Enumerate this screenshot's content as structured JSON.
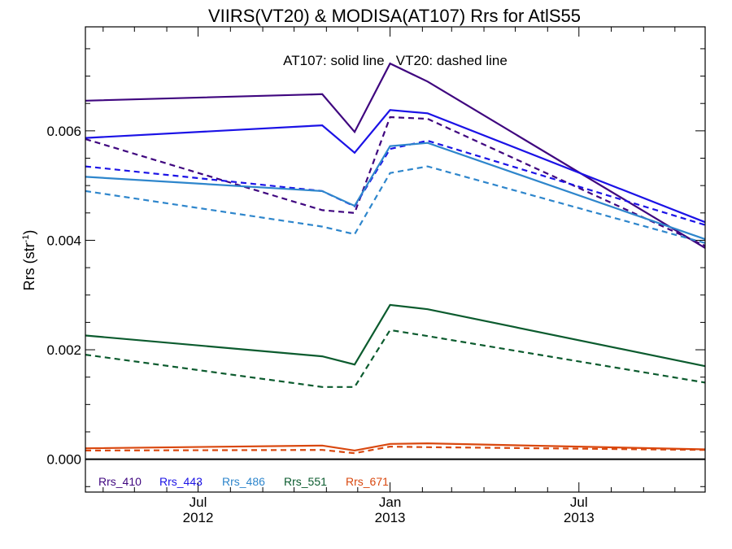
{
  "chart_data": {
    "type": "line",
    "title": "VIIRS(VT20) & MODISA(AT107)  Rrs for AtlS55",
    "subtitle": "AT107: solid line   VT20: dashed line",
    "ylabel_main": "Rrs (str",
    "ylabel_sup": "-1",
    "ylabel_close": ")",
    "ylim": [
      -0.0006,
      0.0079
    ],
    "xlim": [
      "2012-03-15",
      "2013-10-30"
    ],
    "yticks": [
      {
        "value": 0.0,
        "label": "0.000"
      },
      {
        "value": 0.002,
        "label": "0.002"
      },
      {
        "value": 0.004,
        "label": "0.004"
      },
      {
        "value": 0.006,
        "label": "0.006"
      }
    ],
    "xticks": [
      {
        "x": "2012-07-01",
        "month": "Jul",
        "year": "2012"
      },
      {
        "x": "2013-01-01",
        "month": "Jan",
        "year": "2013"
      },
      {
        "x": "2013-07-01",
        "month": "Jul",
        "year": "2013"
      }
    ],
    "x": [
      "2012-03-15",
      "2012-10-28",
      "2012-11-28",
      "2013-01-01",
      "2013-02-06",
      "2013-10-30"
    ],
    "zero_line": 0.0,
    "series": [
      {
        "name": "Rrs_410",
        "color": "#3f067f",
        "solid": [
          0.00655,
          0.00667,
          0.00598,
          0.00723,
          0.0069,
          0.00386
        ],
        "dashed": [
          0.00585,
          0.00455,
          0.0045,
          0.00625,
          0.00622,
          0.0039
        ]
      },
      {
        "name": "Rrs_443",
        "color": "#1b12e6",
        "solid": [
          0.00587,
          0.0061,
          0.0056,
          0.00638,
          0.00632,
          0.00433
        ],
        "dashed": [
          0.00535,
          0.0049,
          0.00462,
          0.00567,
          0.00582,
          0.00428
        ]
      },
      {
        "name": "Rrs_486",
        "color": "#2e86cc",
        "solid": [
          0.00516,
          0.0049,
          0.00463,
          0.00572,
          0.00578,
          0.00402
        ],
        "dashed": [
          0.0049,
          0.00425,
          0.00411,
          0.00523,
          0.00535,
          0.00395
        ]
      },
      {
        "name": "Rrs_551",
        "color": "#0b5b2e",
        "solid": [
          0.00226,
          0.00188,
          0.00173,
          0.00282,
          0.00274,
          0.0017
        ],
        "dashed": [
          0.00191,
          0.00132,
          0.00132,
          0.00236,
          0.00225,
          0.0014
        ]
      },
      {
        "name": "Rrs_671",
        "color": "#d9480f",
        "solid": [
          0.0002,
          0.00025,
          0.00016,
          0.00028,
          0.00029,
          0.00018
        ],
        "dashed": [
          0.00016,
          0.00017,
          0.00011,
          0.00023,
          0.00022,
          0.00017
        ]
      }
    ],
    "legend_position": "bottom-left"
  }
}
